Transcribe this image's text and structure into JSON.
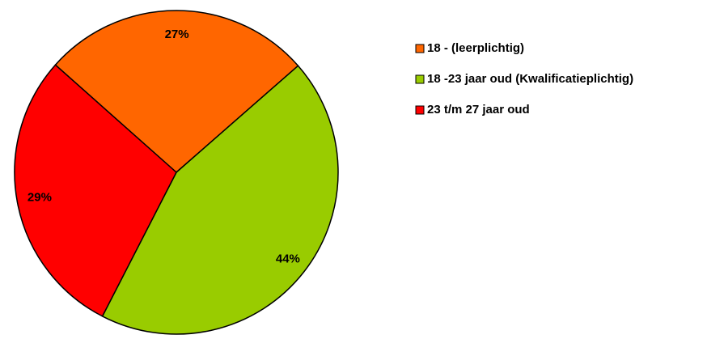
{
  "chart_data": {
    "type": "pie",
    "categories": [
      "18 - (leerplichtig)",
      "18 -23 jaar oud (Kwalificatieplichtig)",
      "23 t/m 27 jaar oud"
    ],
    "values": [
      27,
      44,
      29
    ],
    "value_labels": [
      "27%",
      "44%",
      "29%"
    ],
    "colors": [
      "#ff6600",
      "#99cc00",
      "#ff0000"
    ],
    "legend": "right"
  }
}
